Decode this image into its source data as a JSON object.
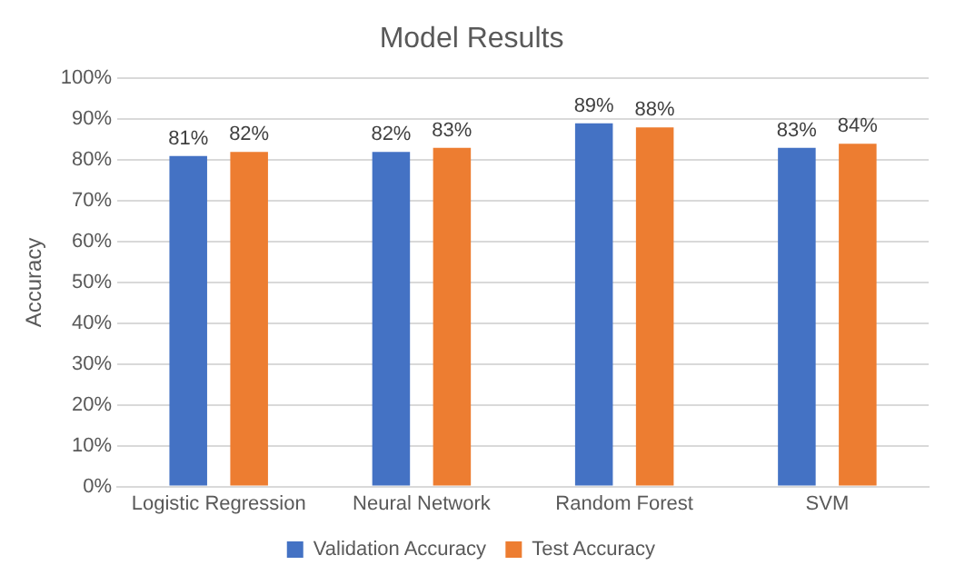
{
  "chart_data": {
    "type": "bar",
    "title": "Model Results",
    "ylabel": "Accuracy",
    "categories": [
      "Logistic Regression",
      "Neural Network",
      "Random Forest",
      "SVM"
    ],
    "series": [
      {
        "name": "Validation Accuracy",
        "color": "#4472c4",
        "values": [
          81,
          82,
          89,
          83
        ],
        "value_labels": [
          "81%",
          "82%",
          "89%",
          "83%"
        ]
      },
      {
        "name": "Test Accuracy",
        "color": "#ed7d31",
        "values": [
          82,
          83,
          88,
          84
        ],
        "value_labels": [
          "82%",
          "83%",
          "88%",
          "84%"
        ]
      }
    ],
    "ylim": [
      0,
      100
    ],
    "yticks": [
      {
        "value": 0,
        "label": "0%"
      },
      {
        "value": 10,
        "label": "10%"
      },
      {
        "value": 20,
        "label": "20%"
      },
      {
        "value": 30,
        "label": "30%"
      },
      {
        "value": 40,
        "label": "40%"
      },
      {
        "value": 50,
        "label": "50%"
      },
      {
        "value": 60,
        "label": "60%"
      },
      {
        "value": 70,
        "label": "70%"
      },
      {
        "value": 80,
        "label": "80%"
      },
      {
        "value": 90,
        "label": "90%"
      },
      {
        "value": 100,
        "label": "100%"
      }
    ],
    "grid": "y",
    "legend": "bottom"
  }
}
